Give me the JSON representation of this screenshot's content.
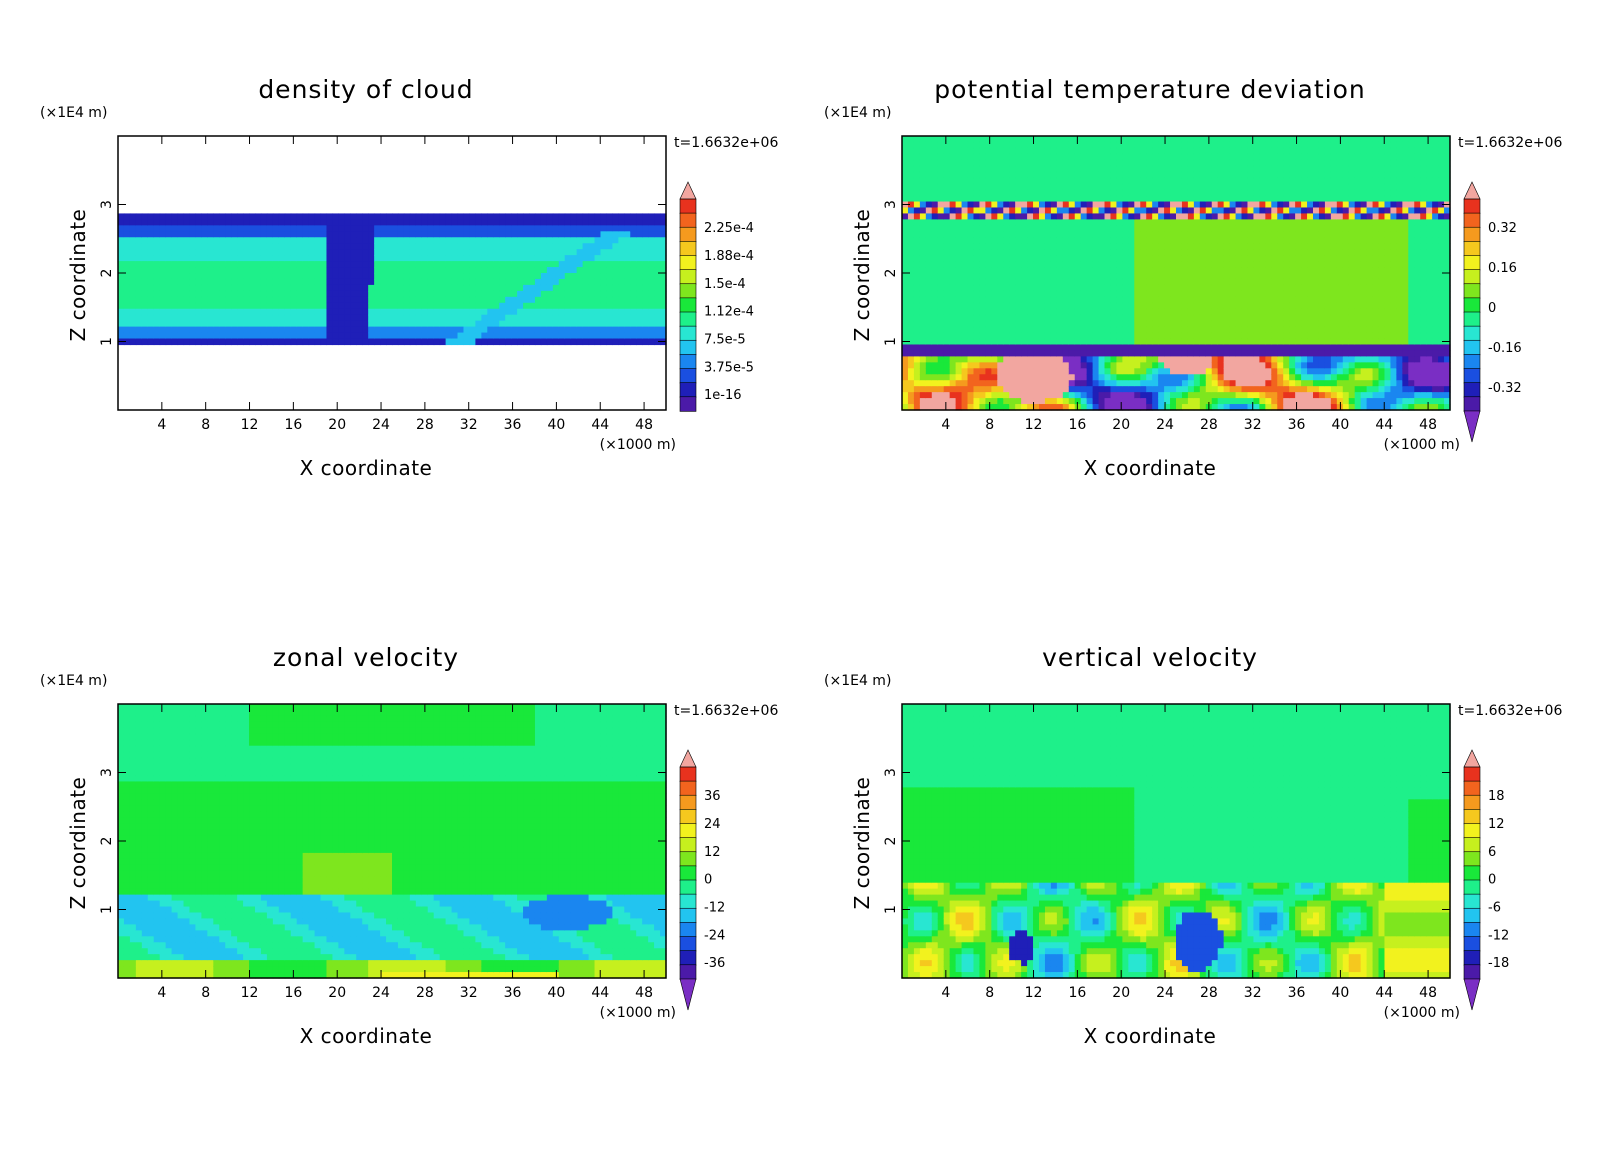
{
  "figure": {
    "time_label": "t=1.6632e+06",
    "x_unit_label": "(×1000 m)",
    "z_unit_label": "(×1E4 m)",
    "xlabel": "X coordinate",
    "ylabel": "Z coordinate",
    "x_ticks": [
      "4",
      "8",
      "12",
      "16",
      "20",
      "24",
      "28",
      "32",
      "36",
      "40",
      "44",
      "48"
    ],
    "z_ticks": [
      "1",
      "2",
      "3"
    ]
  },
  "colors": {
    "palette": [
      "#7a2ec4",
      "#4b1aa8",
      "#1f1fb8",
      "#1a4fe0",
      "#1a86f0",
      "#22c4f0",
      "#28e6d2",
      "#1ef08a",
      "#19e83a",
      "#7ee61e",
      "#c6f01e",
      "#f2f21e",
      "#f5c81e",
      "#f59a1e",
      "#f2641e",
      "#e8321e",
      "#f2a6a0"
    ],
    "background": "#ffffff"
  },
  "chart_data": [
    {
      "type": "heatmap",
      "title": "density of cloud",
      "xlabel": "X coordinate",
      "ylabel": "Z coordinate",
      "xlim": [
        0,
        50
      ],
      "ylim": [
        0,
        4
      ],
      "colorbar_labels": [
        "2.25e-4",
        "1.88e-4",
        "1.5e-4",
        "1.12e-4",
        "7.5e-5",
        "3.75e-5",
        "1e-16"
      ],
      "colorbar_triangles": "top"
    },
    {
      "type": "heatmap",
      "title": "potential temperature deviation",
      "xlabel": "X coordinate",
      "ylabel": "Z coordinate",
      "xlim": [
        0,
        50
      ],
      "ylim": [
        0,
        4
      ],
      "colorbar_labels": [
        "0.32",
        "0.16",
        "0",
        "-0.16",
        "-0.32"
      ],
      "colorbar_triangles": "both"
    },
    {
      "type": "heatmap",
      "title": "zonal velocity",
      "xlabel": "X coordinate",
      "ylabel": "Z coordinate",
      "xlim": [
        0,
        50
      ],
      "ylim": [
        0,
        4
      ],
      "colorbar_labels": [
        "36",
        "24",
        "12",
        "0",
        "-12",
        "-24",
        "-36"
      ],
      "colorbar_triangles": "both"
    },
    {
      "type": "heatmap",
      "title": "vertical velocity",
      "xlabel": "X coordinate",
      "ylabel": "Z coordinate",
      "xlim": [
        0,
        50
      ],
      "ylim": [
        0,
        4
      ],
      "colorbar_labels": [
        "18",
        "12",
        "6",
        "0",
        "-6",
        "-12",
        "-18"
      ],
      "colorbar_triangles": "both"
    }
  ]
}
